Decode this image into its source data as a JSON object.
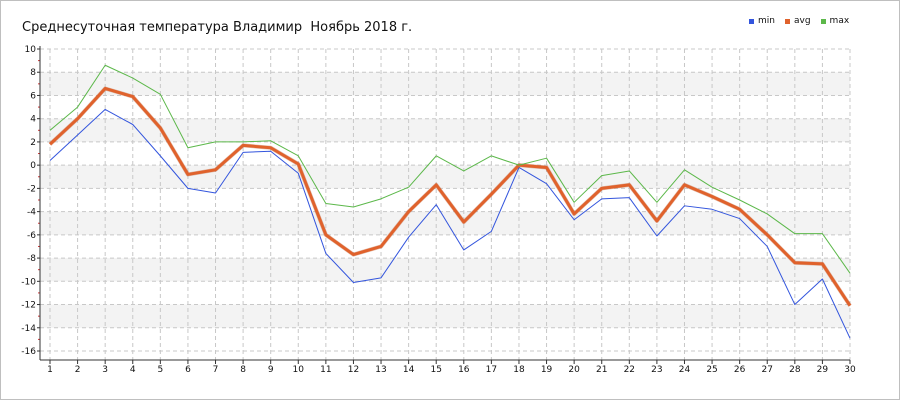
{
  "chart_data": {
    "type": "line",
    "title": "Среднесуточная температура Владимир  Ноябрь 2018 г.",
    "x": [
      1,
      2,
      3,
      4,
      5,
      6,
      7,
      8,
      9,
      10,
      11,
      12,
      13,
      14,
      15,
      16,
      17,
      18,
      19,
      20,
      21,
      22,
      23,
      24,
      25,
      26,
      27,
      28,
      29,
      30
    ],
    "ylim": [
      -16,
      10
    ],
    "yticks": [
      10,
      8,
      6,
      4,
      2,
      0,
      -2,
      -4,
      -6,
      -8,
      -10,
      -12,
      -14,
      -16
    ],
    "grid": true,
    "legend_position": "top-right",
    "series": [
      {
        "name": "min",
        "color": "#3355dd",
        "values": [
          0.4,
          2.6,
          4.8,
          3.5,
          0.8,
          -2.0,
          -2.4,
          1.1,
          1.2,
          -0.7,
          -7.6,
          -10.1,
          -9.7,
          -6.2,
          -3.4,
          -7.3,
          -5.7,
          -0.2,
          -1.6,
          -4.7,
          -2.9,
          -2.8,
          -6.1,
          -3.5,
          -3.8,
          -4.6,
          -7.0,
          -12.0,
          -9.8,
          -14.9
        ]
      },
      {
        "name": "avg",
        "color": "#e0622c",
        "values": [
          1.8,
          4.0,
          6.6,
          5.9,
          3.2,
          -0.8,
          -0.4,
          1.7,
          1.5,
          0.1,
          -6.0,
          -7.7,
          -7.0,
          -4.0,
          -1.7,
          -4.9,
          -2.5,
          0.0,
          -0.2,
          -4.2,
          -2.0,
          -1.7,
          -4.8,
          -1.7,
          -2.7,
          -3.8,
          -6.0,
          -8.4,
          -8.5,
          -12.1
        ]
      },
      {
        "name": "max",
        "color": "#5cb84a",
        "values": [
          3.0,
          5.0,
          8.6,
          7.5,
          6.1,
          1.5,
          2.0,
          2.0,
          2.1,
          0.8,
          -3.3,
          -3.6,
          -2.9,
          -1.9,
          0.8,
          -0.5,
          0.8,
          0.0,
          0.6,
          -3.2,
          -0.9,
          -0.5,
          -3.2,
          -0.4,
          -1.9,
          -3.0,
          -4.2,
          -5.9,
          -5.9,
          -9.3
        ]
      }
    ]
  }
}
